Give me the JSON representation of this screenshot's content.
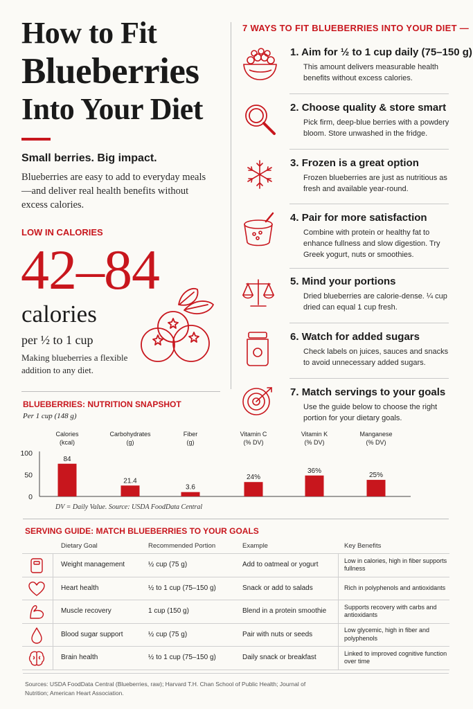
{
  "title": {
    "line1": "How to Fit",
    "line2": "Blueberries",
    "line3": "Into Your Diet"
  },
  "tagline": "Small berries. Big impact.",
  "intro": "Blueberries are easy to add to everyday meals—and deliver real health benefits without excess calories.",
  "low_calories": {
    "label": "LOW IN CALORIES",
    "range": "42–84",
    "unit": "calories",
    "per": "per ½ to 1 cup",
    "note": "Making blueberries a flexible addition to any diet."
  },
  "ways": {
    "heading": "7 WAYS TO FIT BLUEBERRIES INTO YOUR DIET —",
    "items": [
      {
        "num": "1.",
        "title": "Aim for ½ to 1 cup daily (75–150 g)",
        "desc": "This amount delivers measurable health benefits without excess calories.",
        "icon": "bowl-icon"
      },
      {
        "num": "2.",
        "title": "Choose quality & store smart",
        "desc": "Pick firm, deep-blue berries with a powdery bloom. Store unwashed in the fridge.",
        "icon": "magnifier-icon"
      },
      {
        "num": "3.",
        "title": "Frozen is a great option",
        "desc": "Frozen blueberries are just as nutritious as fresh and available year-round.",
        "icon": "snowflake-icon"
      },
      {
        "num": "4.",
        "title": "Pair for more satisfaction",
        "desc": "Combine with protein or healthy fat to enhance fullness and slow digestion. Try Greek yogurt, nuts or smoothies.",
        "icon": "yogurt-cup-icon"
      },
      {
        "num": "5.",
        "title": "Mind your portions",
        "desc": "Dried blueberries are calorie-dense. ¼ cup dried can equal 1 cup fresh.",
        "icon": "scale-icon"
      },
      {
        "num": "6.",
        "title": "Watch for added sugars",
        "desc": "Check labels on juices, sauces and snacks to avoid unnecessary added sugars.",
        "icon": "jar-icon"
      },
      {
        "num": "7.",
        "title": "Match servings to your goals",
        "desc": "Use the guide below to choose the right portion for your dietary goals.",
        "icon": "target-icon"
      }
    ]
  },
  "nutrition": {
    "heading": "BLUEBERRIES: NUTRITION SNAPSHOT",
    "sub": "Per 1 cup (148 g)",
    "note": "DV = Daily Value. Source: USDA FoodData Central"
  },
  "chart_data": {
    "type": "bar",
    "categories": [
      "Calories\n(kcal)",
      "Carbohydrates\n(g)",
      "Fiber\n(g)",
      "Vitamin C\n(% DV)",
      "Vitamin K\n(% DV)",
      "Manganese\n(% DV)"
    ],
    "category_names": [
      "Calories",
      "Carbohydrates",
      "Fiber",
      "Vitamin C",
      "Vitamin K",
      "Manganese"
    ],
    "category_units": [
      "(kcal)",
      "(g)",
      "(g)",
      "(% DV)",
      "(% DV)",
      "(% DV)"
    ],
    "values": [
      84,
      21.4,
      3.6,
      24,
      36,
      25
    ],
    "value_labels": [
      "84",
      "21.4",
      "3.6",
      "24%",
      "36%",
      "25%"
    ],
    "bar_heights_on_axis": [
      75,
      25,
      10,
      33,
      48,
      38
    ],
    "yticks": [
      0,
      50,
      100
    ],
    "ylim": [
      0,
      100
    ],
    "bar_color": "#c8161d",
    "grid": false
  },
  "guide": {
    "heading": "SERVING GUIDE: MATCH BLUEBERRIES TO YOUR GOALS",
    "columns": [
      "Dietary Goal",
      "Recommended Portion",
      "Example",
      "Key Benefits"
    ],
    "rows": [
      {
        "icon": "scale-body-icon",
        "goal": "Weight management",
        "portion": "½ cup (75 g)",
        "example": "Add to oatmeal or yogurt",
        "benefit": "Low in calories, high in fiber supports fullness"
      },
      {
        "icon": "heart-icon",
        "goal": "Heart health",
        "portion": "½ to 1 cup (75–150 g)",
        "example": "Snack or add to salads",
        "benefit": "Rich in polyphenols and antioxidants"
      },
      {
        "icon": "muscle-icon",
        "goal": "Muscle recovery",
        "portion": "1 cup (150 g)",
        "example": "Blend in a protein smoothie",
        "benefit": "Supports recovery with carbs and antioxidants"
      },
      {
        "icon": "drop-icon",
        "goal": "Blood sugar support",
        "portion": "½ cup (75 g)",
        "example": "Pair with nuts or seeds",
        "benefit": "Low glycemic, high in fiber and polyphenols"
      },
      {
        "icon": "brain-icon",
        "goal": "Brain health",
        "portion": "½ to 1 cup (75–150 g)",
        "example": "Daily snack or breakfast",
        "benefit": "Linked to improved cognitive function over time"
      }
    ]
  },
  "sources": "Sources: USDA FoodData Central (Blueberries, raw); Harvard T.H. Chan School of Public Health; Journal of Nutrition; American Heart Association."
}
